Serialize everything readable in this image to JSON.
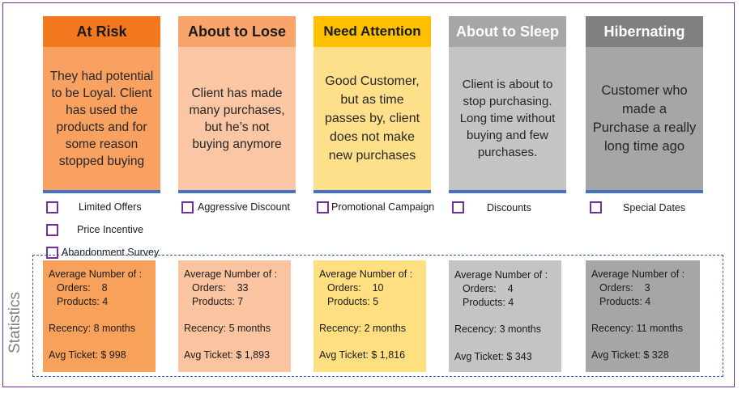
{
  "segments": [
    {
      "title": "At Risk",
      "description": "They had potential to be Loyal. Client has used the products and for some reason stopped buying",
      "head_color": "#f4781e",
      "body_color": "#f8a160",
      "actions": [
        "Limited Offers",
        "Price Incentive",
        "Abandonment Survey"
      ],
      "stats": {
        "heading": "Average Number of :",
        "orders": "Orders:    8",
        "products": "Products: 4",
        "recency": "Recency: 8 months",
        "ticket": "Avg Ticket: $ 998"
      },
      "stat_color": "#f8a15a"
    },
    {
      "title": "About to Lose",
      "description": "Client has made many purchases, but he’s not buying anymore",
      "head_color": "#f8a46a",
      "body_color": "#fac6a4",
      "actions": [
        "Aggressive Discount"
      ],
      "stats": {
        "heading": "Average Number of :",
        "orders": "Orders:    33",
        "products": "Products: 7",
        "recency": "Recency: 5 months",
        "ticket": "Avg Ticket: $ 1,893"
      },
      "stat_color": "#fbc4a0"
    },
    {
      "title": "Need Attention",
      "description": "Good Customer, but as time passes by, client does not make new purchases",
      "head_color": "#ffc000",
      "body_color": "#ffe08a",
      "actions": [
        "Promotional Campaign"
      ],
      "stats": {
        "heading": "Average Number of :",
        "orders": "Orders:    10",
        "products": "Products: 5",
        "recency": "Recency: 2 months",
        "ticket": "Avg Ticket: $ 1,816"
      },
      "stat_color": "#ffdf7f"
    },
    {
      "title": "About to Sleep",
      "description": "Client is about to stop purchasing. Long time without buying and few purchases.",
      "head_color": "#a6a6a6",
      "body_color": "#c4c4c4",
      "actions": [
        "Discounts"
      ],
      "stats": {
        "heading": "Average Number of :",
        "orders": "Orders:    4",
        "products": "Products: 4",
        "recency": "Recency: 3 months",
        "ticket": "Avg Ticket: $ 343"
      },
      "stat_color": "#c4c4c4"
    },
    {
      "title": "Hibernating",
      "description": "Customer who made a Purchase a really long time ago",
      "head_color": "#808080",
      "body_color": "#a6a6a6",
      "actions": [
        "Special Dates"
      ],
      "stats": {
        "heading": "Average Number of :",
        "orders": "Orders:    3",
        "products": "Products: 4",
        "recency": "Recency: 11 months",
        "ticket": "Avg Ticket: $ 328"
      },
      "stat_color": "#a6a6a6"
    }
  ],
  "stats_label": "Statistics",
  "colors": {
    "frame": "#7030a0",
    "rule": "#4472c4",
    "stats_border": "#2f5597",
    "checkbox": "#7030a0"
  },
  "icons": {
    "action_checkbox": "checkbox-icon"
  }
}
